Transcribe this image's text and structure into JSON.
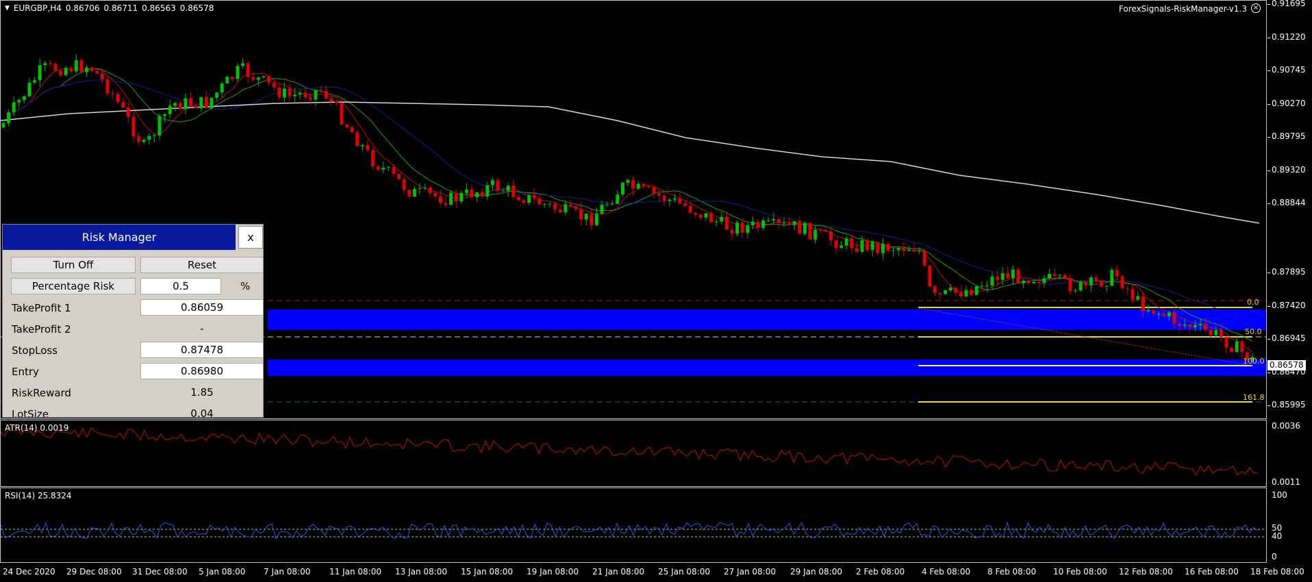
{
  "chart": {
    "symbol": "EURGBP,H4",
    "open": "0.86706",
    "high": "0.86711",
    "low": "0.86563",
    "close": "0.86578",
    "indicator_name": "ForexSignals-RiskManager-v1.3",
    "current_price": "0.86578",
    "price_labels": [
      "0.91695",
      "0.91220",
      "0.90745",
      "0.90270",
      "0.89795",
      "0.89320",
      "0.88844",
      "0.87895",
      "0.87420",
      "0.86945",
      "0.86470",
      "0.85995"
    ],
    "fibo_levels": [
      "0.0",
      "50.0",
      "100.0",
      "161.8"
    ],
    "colors": {
      "bull": "#00c000",
      "bear": "#e00000",
      "ma_slow": "#d8d8d8",
      "ma_blue": "#1a1aa0",
      "ma_red": "#c01010",
      "ma_green": "#20a020",
      "zone": "#0000ff",
      "fibo": "#e6d34a"
    }
  },
  "atr": {
    "label": "ATR(14) 0.0019",
    "axis_labels": [
      "0.0036",
      "0.0011"
    ]
  },
  "rsi": {
    "label": "RSI(14) 25.8324",
    "axis_labels": [
      "100",
      "50",
      "40",
      "0"
    ]
  },
  "time_axis": [
    "24 Dec 2020",
    "29 Dec 08:00",
    "31 Dec 08:00",
    "5 Jan 08:00",
    "7 Jan 08:00",
    "11 Jan 08:00",
    "13 Jan 08:00",
    "15 Jan 08:00",
    "19 Jan 08:00",
    "21 Jan 08:00",
    "25 Jan 08:00",
    "27 Jan 08:00",
    "29 Jan 08:00",
    "2 Feb 08:00",
    "4 Feb 08:00",
    "8 Feb 08:00",
    "10 Feb 08:00",
    "12 Feb 08:00",
    "16 Feb 08:00",
    "18 Feb 08:00"
  ],
  "risk_manager": {
    "title": "Risk Manager",
    "close_label": "x",
    "turn_off_label": "Turn Off",
    "reset_label": "Reset",
    "percentage_risk_label": "Percentage Risk",
    "percentage_risk_value": "0.5",
    "percent_sign": "%",
    "tp1_label": "TakeProfit 1",
    "tp1_value": "0.86059",
    "tp2_label": "TakeProfit 2",
    "tp2_value": "-",
    "sl_label": "StopLoss",
    "sl_value": "0.87478",
    "entry_label": "Entry",
    "entry_value": "0.86980",
    "rr_label": "RiskReward",
    "rr_value": "1.85",
    "lot_label": "LotSize",
    "lot_value": "0.04"
  }
}
